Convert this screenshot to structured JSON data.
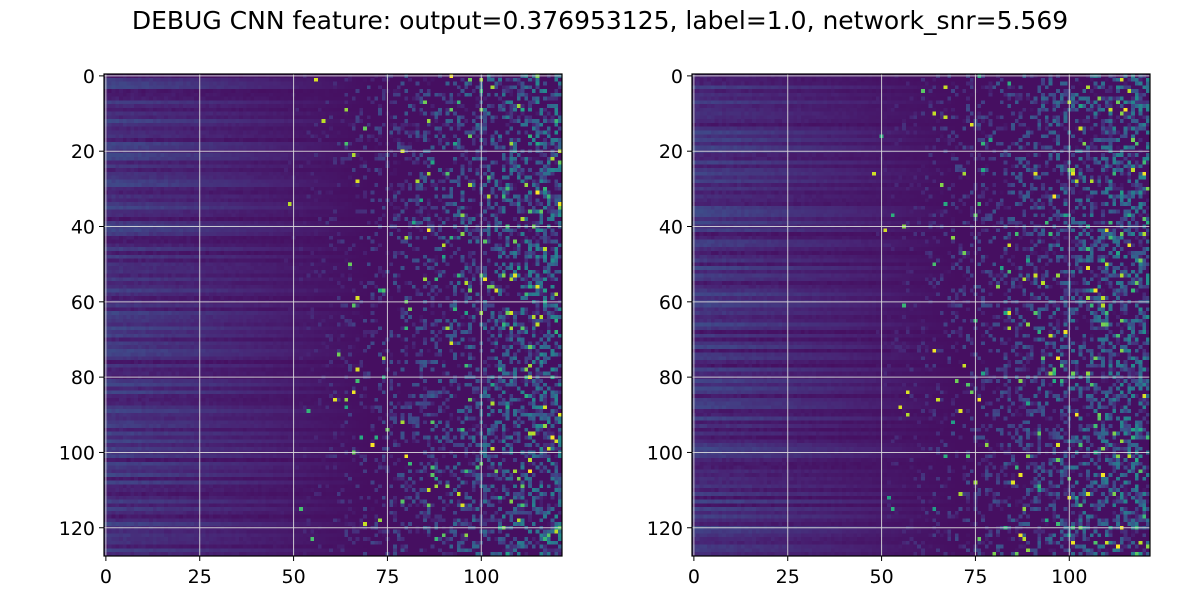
{
  "title": "DEBUG CNN feature: output=0.376953125, label=1.0, network_snr=5.569",
  "colormap": "viridis",
  "chart_data": [
    {
      "type": "heatmap",
      "panel": "left",
      "rows": 128,
      "cols": 122,
      "xlim": [
        0,
        121
      ],
      "ylim": [
        127,
        0
      ],
      "xticks": [
        0,
        25,
        50,
        75,
        100
      ],
      "yticks": [
        0,
        20,
        40,
        60,
        80,
        100,
        120
      ],
      "grid": true,
      "pattern": "horizontal bands of low values for x < 50, sparse high-value speckle increasing for x > 75"
    },
    {
      "type": "heatmap",
      "panel": "right",
      "rows": 128,
      "cols": 122,
      "xlim": [
        0,
        121
      ],
      "ylim": [
        127,
        0
      ],
      "xticks": [
        0,
        25,
        50,
        75,
        100
      ],
      "yticks": [
        0,
        20,
        40,
        60,
        80,
        100,
        120
      ],
      "grid": true,
      "pattern": "horizontal bands of low values for x < 50, sparse high-value speckle increasing for x > 75"
    }
  ]
}
